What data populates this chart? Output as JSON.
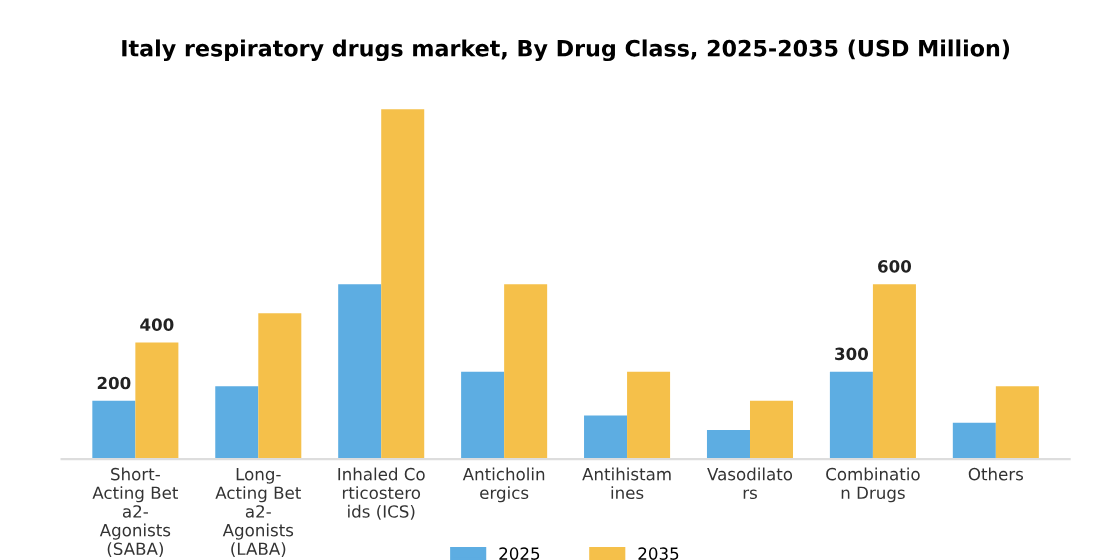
{
  "chart_data": {
    "type": "bar",
    "title": "Italy respiratory drugs market, By Drug Class, 2025-2035 (USD Million)",
    "categories": [
      "Short-\nActing Bet\na2-\nAgonists\n(SABA)",
      "Long-\nActing Bet\na2-\nAgonists\n(LABA)",
      "Inhaled Co\nrticostero\nids (ICS)",
      "Anticholin\nergics",
      "Antihistam\nines",
      "Vasodilato\nrs",
      "Combinatio\nn Drugs",
      "Others"
    ],
    "series": [
      {
        "name": "2025",
        "color": "#5dade2",
        "values": [
          200,
          250,
          600,
          300,
          150,
          100,
          300,
          125
        ],
        "value_labels": [
          "200",
          null,
          null,
          null,
          null,
          null,
          "300",
          null
        ]
      },
      {
        "name": "2035",
        "color": "#f5c04a",
        "values": [
          400,
          500,
          1200,
          600,
          300,
          200,
          600,
          250
        ],
        "value_labels": [
          "400",
          null,
          null,
          null,
          null,
          null,
          "600",
          null
        ]
      }
    ],
    "legend": "bottom",
    "grid": false,
    "tick_labels": "x"
  }
}
